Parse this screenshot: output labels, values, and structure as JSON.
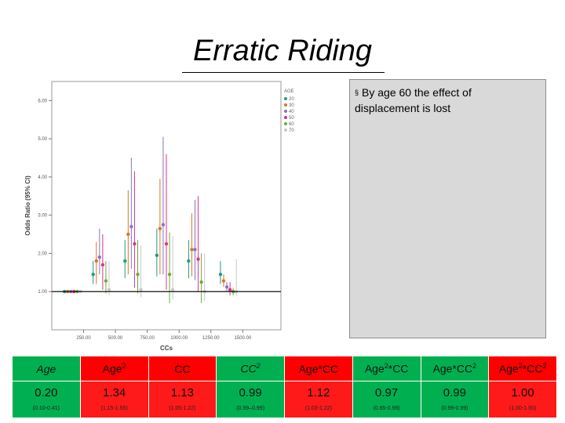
{
  "slide": {
    "title": "Erratic Riding",
    "note_bullet": "§",
    "note": "By age 60 the effect of displacement is lost"
  },
  "chart_data": {
    "type": "scatter",
    "title": "",
    "xlabel": "CCs",
    "ylabel": "Odds Ratio (95% CI)",
    "xlim": [
      0,
      1800
    ],
    "ylim": [
      0,
      6.5
    ],
    "x_ticks": [
      "250.00",
      "500.00",
      "750.00",
      "1000.00",
      "1250.00",
      "1500.00"
    ],
    "x_tick_values": [
      250,
      500,
      750,
      1000,
      1250,
      1500
    ],
    "y_ticks": [
      "1.00",
      "2.00",
      "3.00",
      "4.00",
      "5.00",
      "6.00"
    ],
    "y_tick_values": [
      1,
      2,
      3,
      4,
      5,
      6
    ],
    "reference_line": 1.0,
    "legend_title": "AGE",
    "legend_position": "top-right",
    "series": [
      {
        "name": "20",
        "color": "#1a9c8c",
        "points": [
          {
            "x": 100,
            "y": 1.0,
            "lo": 1.0,
            "hi": 1.0
          },
          {
            "x": 325,
            "y": 1.45,
            "lo": 1.2,
            "hi": 1.8
          },
          {
            "x": 575,
            "y": 1.8,
            "lo": 1.35,
            "hi": 2.35
          },
          {
            "x": 825,
            "y": 1.95,
            "lo": 1.4,
            "hi": 2.65
          },
          {
            "x": 1075,
            "y": 1.8,
            "lo": 1.35,
            "hi": 2.35
          },
          {
            "x": 1325,
            "y": 1.45,
            "lo": 1.2,
            "hi": 1.8
          }
        ]
      },
      {
        "name": "30",
        "color": "#e0731f",
        "points": [
          {
            "x": 125,
            "y": 1.0,
            "lo": 1.0,
            "hi": 1.0
          },
          {
            "x": 350,
            "y": 1.8,
            "lo": 1.2,
            "hi": 2.3
          },
          {
            "x": 600,
            "y": 2.5,
            "lo": 1.45,
            "hi": 3.65
          },
          {
            "x": 850,
            "y": 2.65,
            "lo": 1.45,
            "hi": 3.95
          },
          {
            "x": 1100,
            "y": 2.1,
            "lo": 1.4,
            "hi": 3.05
          },
          {
            "x": 1350,
            "y": 1.28,
            "lo": 1.12,
            "hi": 1.45
          }
        ]
      },
      {
        "name": "40",
        "color": "#8676b8",
        "points": [
          {
            "x": 150,
            "y": 1.0,
            "lo": 1.0,
            "hi": 1.0
          },
          {
            "x": 375,
            "y": 1.9,
            "lo": 1.45,
            "hi": 2.65
          },
          {
            "x": 625,
            "y": 2.7,
            "lo": 1.6,
            "hi": 4.5
          },
          {
            "x": 875,
            "y": 2.75,
            "lo": 1.45,
            "hi": 5.05
          },
          {
            "x": 1125,
            "y": 2.1,
            "lo": 1.3,
            "hi": 3.4
          },
          {
            "x": 1375,
            "y": 1.12,
            "lo": 1.0,
            "hi": 1.25
          }
        ]
      },
      {
        "name": "50",
        "color": "#e0308f",
        "points": [
          {
            "x": 175,
            "y": 1.0,
            "lo": 1.0,
            "hi": 1.0
          },
          {
            "x": 400,
            "y": 1.7,
            "lo": 1.05,
            "hi": 2.5
          },
          {
            "x": 650,
            "y": 2.25,
            "lo": 1.1,
            "hi": 4.15
          },
          {
            "x": 900,
            "y": 2.25,
            "lo": 1.05,
            "hi": 4.6
          },
          {
            "x": 1150,
            "y": 1.85,
            "lo": 1.0,
            "hi": 3.5
          },
          {
            "x": 1400,
            "y": 1.05,
            "lo": 0.9,
            "hi": 1.25
          }
        ]
      },
      {
        "name": "60",
        "color": "#6aab3a",
        "points": [
          {
            "x": 200,
            "y": 1.0,
            "lo": 1.0,
            "hi": 1.0
          },
          {
            "x": 425,
            "y": 1.28,
            "lo": 0.95,
            "hi": 1.8
          },
          {
            "x": 675,
            "y": 1.45,
            "lo": 0.95,
            "hi": 2.35
          },
          {
            "x": 925,
            "y": 1.45,
            "lo": 0.7,
            "hi": 2.55
          },
          {
            "x": 1175,
            "y": 1.25,
            "lo": 0.7,
            "hi": 2.0
          },
          {
            "x": 1425,
            "y": 1.0,
            "lo": 0.9,
            "hi": 1.1
          }
        ]
      },
      {
        "name": "70",
        "color": "#c8c8c8",
        "points": [
          {
            "x": 225,
            "y": 1.0,
            "lo": 1.0,
            "hi": 1.0
          },
          {
            "x": 450,
            "y": 1.05,
            "lo": 0.9,
            "hi": 1.8
          },
          {
            "x": 700,
            "y": 1.05,
            "lo": 0.85,
            "hi": 2.2
          },
          {
            "x": 950,
            "y": 1.05,
            "lo": 0.8,
            "hi": 2.45
          },
          {
            "x": 1200,
            "y": 1.0,
            "lo": 0.75,
            "hi": 2.0
          },
          {
            "x": 1450,
            "y": 1.0,
            "lo": 0.9,
            "hi": 1.85
          }
        ]
      }
    ]
  },
  "coef_table": {
    "headers": [
      {
        "base": "Age",
        "sup": ""
      },
      {
        "base": "Age",
        "sup": "2"
      },
      {
        "base": "CC",
        "sup": ""
      },
      {
        "base": "CC",
        "sup": "2"
      },
      {
        "base": "Age*CC",
        "sup": ""
      },
      {
        "base": "Age",
        "sup": "2",
        "tail": "*CC"
      },
      {
        "base": "Age*CC",
        "sup": "2"
      },
      {
        "base": "Age",
        "sup": "2",
        "tail": "*CC",
        "sup2": "2"
      }
    ],
    "cells": [
      {
        "estimate": "0.20",
        "ci": "(0.10-0.41)"
      },
      {
        "estimate": "1.34",
        "ci": "(1.15-1.55)"
      },
      {
        "estimate": "1.13",
        "ci": "(1.05-1.22)"
      },
      {
        "estimate": "0.99",
        "ci": "(0.99–0.99)"
      },
      {
        "estimate": "1.12",
        "ci": "(1.03-1.22)"
      },
      {
        "estimate": "0.97",
        "ci": "(0.95-0.99)"
      },
      {
        "estimate": "0.99",
        "ci": "(0.99-0.99)"
      },
      {
        "estimate": "1.00",
        "ci": "(1.00-1.00)"
      }
    ],
    "colors": {
      "green": "#00b050",
      "red": "#ff1a1a"
    }
  }
}
